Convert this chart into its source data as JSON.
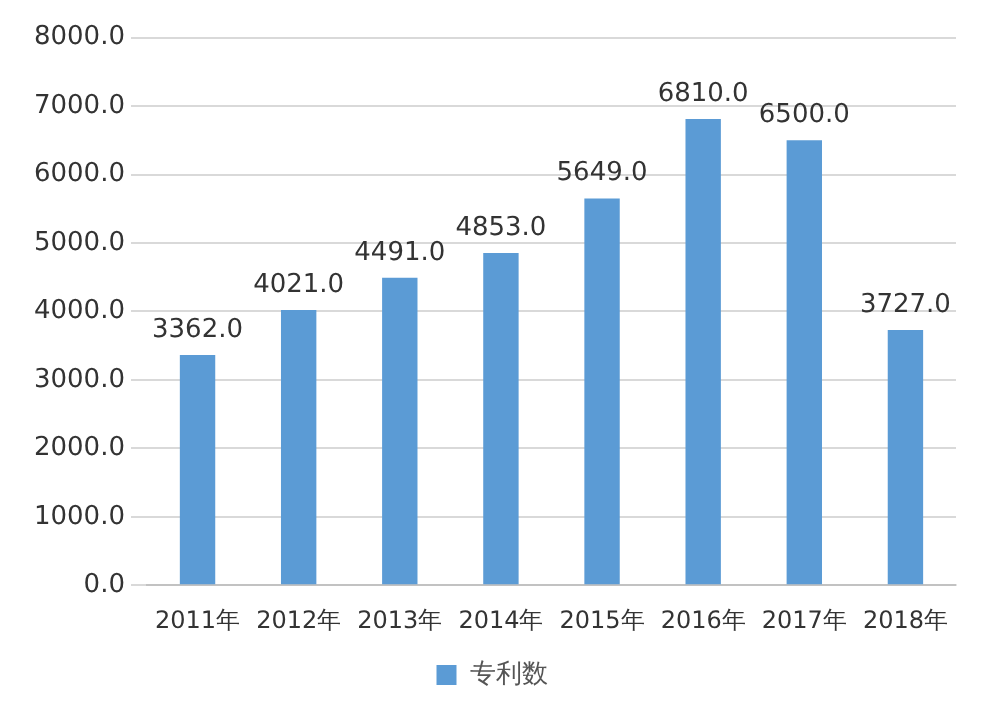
{
  "chart_data": {
    "type": "bar",
    "categories": [
      "2011年",
      "2012年",
      "2013年",
      "2014年",
      "2015年",
      "2016年",
      "2017年",
      "2018年"
    ],
    "series": [
      {
        "name": "专利数",
        "color": "#5b9bd5",
        "values": [
          3362,
          4021,
          4491,
          4853,
          5649,
          6810,
          6500,
          3727
        ],
        "value_labels": [
          "3362.0",
          "4021.0",
          "4491.0",
          "4853.0",
          "5649.0",
          "6810.0",
          "6500.0",
          "3727.0"
        ]
      }
    ],
    "ylim": [
      0,
      8000
    ],
    "yticks": [
      {
        "value": 0,
        "label": "0.0"
      },
      {
        "value": 1000,
        "label": "1000.0"
      },
      {
        "value": 2000,
        "label": "2000.0"
      },
      {
        "value": 3000,
        "label": "3000.0"
      },
      {
        "value": 4000,
        "label": "4000.0"
      },
      {
        "value": 5000,
        "label": "5000.0"
      },
      {
        "value": 6000,
        "label": "6000.0"
      },
      {
        "value": 7000,
        "label": "7000.0"
      },
      {
        "value": 8000,
        "label": "8000.0"
      }
    ],
    "grid": "y",
    "legend": "bottom"
  }
}
